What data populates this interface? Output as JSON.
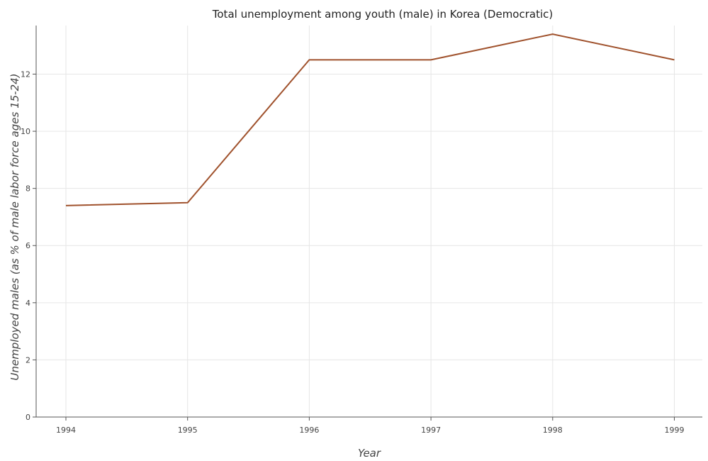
{
  "chart_data": {
    "type": "line",
    "title": "Total unemployment among youth (male) in Korea (Democratic)",
    "xlabel": "Year",
    "ylabel": "Unemployed males (as % of male labor force ages 15-24)",
    "categories": [
      "1994",
      "1995",
      "1996",
      "1997",
      "1998",
      "1999"
    ],
    "series": [
      {
        "name": "",
        "values": [
          7.4,
          7.5,
          12.5,
          12.5,
          13.4,
          12.5
        ],
        "color": "#a0522d"
      }
    ],
    "yticks": [
      "0",
      "2",
      "4",
      "6",
      "8",
      "10",
      "12"
    ],
    "ylim": [
      0,
      13.7
    ],
    "grid": true,
    "legend": "none"
  }
}
